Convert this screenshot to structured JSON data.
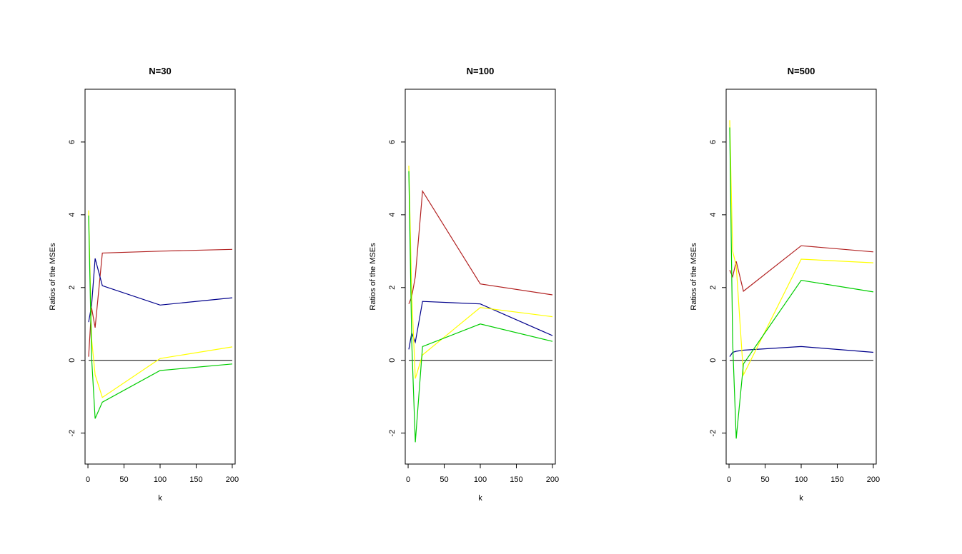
{
  "chart_data": [
    {
      "type": "line",
      "title": "N=30",
      "xlabel": "k",
      "ylabel": "Ratios of the MSEs",
      "xlim": [
        -4,
        204
      ],
      "ylim": [
        -2.85,
        7.45
      ],
      "xticks": [
        0,
        50,
        100,
        150,
        200
      ],
      "yticks": [
        -2,
        0,
        2,
        4,
        6
      ],
      "hline": 0,
      "x": [
        1,
        5,
        10,
        20,
        100,
        200
      ],
      "series": [
        {
          "color": "#b22222",
          "values": [
            0.1,
            1.45,
            0.9,
            2.95,
            3.0,
            3.05
          ]
        },
        {
          "color": "#00008b",
          "values": [
            1.05,
            1.5,
            2.8,
            2.05,
            1.52,
            1.72
          ]
        },
        {
          "color": "#ffff00",
          "values": [
            4.12,
            0.6,
            -0.4,
            -1.02,
            0.05,
            0.37
          ]
        },
        {
          "color": "#00cd00",
          "values": [
            3.98,
            0.1,
            -1.6,
            -1.15,
            -0.28,
            -0.1
          ]
        }
      ]
    },
    {
      "type": "line",
      "title": "N=100",
      "xlabel": "k",
      "ylabel": "Ratios of the MSEs",
      "xlim": [
        -4,
        204
      ],
      "ylim": [
        -2.85,
        7.45
      ],
      "xticks": [
        0,
        50,
        100,
        150,
        200
      ],
      "yticks": [
        -2,
        0,
        2,
        4,
        6
      ],
      "hline": 0,
      "x": [
        1,
        5,
        10,
        20,
        100,
        200
      ],
      "series": [
        {
          "color": "#b22222",
          "values": [
            1.55,
            1.75,
            2.3,
            4.65,
            2.1,
            1.8
          ]
        },
        {
          "color": "#00008b",
          "values": [
            0.3,
            0.75,
            0.5,
            1.62,
            1.55,
            0.68
          ]
        },
        {
          "color": "#ffff00",
          "values": [
            5.35,
            1.8,
            -0.5,
            0.15,
            1.45,
            1.2
          ]
        },
        {
          "color": "#00cd00",
          "values": [
            5.2,
            0.5,
            -2.25,
            0.38,
            1.0,
            0.52
          ]
        }
      ]
    },
    {
      "type": "line",
      "title": "N=500",
      "xlabel": "k",
      "ylabel": "Ratios of the MSEs",
      "xlim": [
        -4,
        204
      ],
      "ylim": [
        -2.85,
        7.45
      ],
      "xticks": [
        0,
        50,
        100,
        150,
        200
      ],
      "yticks": [
        -2,
        0,
        2,
        4,
        6
      ],
      "hline": 0,
      "x": [
        1,
        5,
        10,
        20,
        100,
        200
      ],
      "series": [
        {
          "color": "#b22222",
          "values": [
            2.48,
            2.3,
            2.72,
            1.9,
            3.15,
            2.98
          ]
        },
        {
          "color": "#00008b",
          "values": [
            0.1,
            0.22,
            0.25,
            0.28,
            0.38,
            0.22
          ]
        },
        {
          "color": "#ffff00",
          "values": [
            6.6,
            3.0,
            2.6,
            -0.4,
            2.78,
            2.68
          ]
        },
        {
          "color": "#00cd00",
          "values": [
            6.4,
            0.5,
            -2.15,
            -0.1,
            2.2,
            1.88
          ]
        }
      ]
    }
  ]
}
